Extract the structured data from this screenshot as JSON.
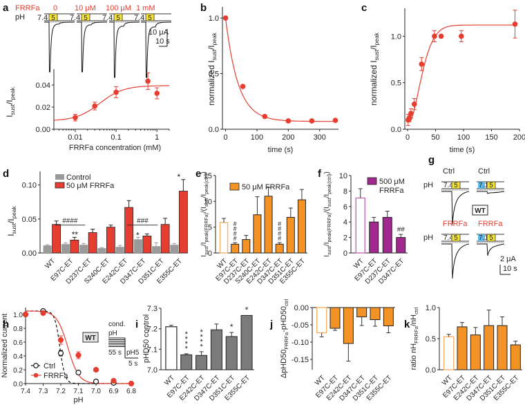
{
  "colors": {
    "red": "#e53d2f",
    "gray": "#9a9a9a",
    "darkgray": "#7a7a7a",
    "orange": "#f39325",
    "orange_light": "#f6b46a",
    "purple": "#a0288e",
    "purple_light": "#c66bb8",
    "yellow": "#f5e437",
    "blue": "#5fb8e6"
  },
  "panel_labels": [
    "a",
    "b",
    "c",
    "d",
    "e",
    "f",
    "g",
    "h",
    "i",
    "j",
    "k"
  ],
  "traces_a": {
    "row_label_top": "FRRFa",
    "row_label_ph": "pH",
    "conditions": [
      "0",
      "10 μM",
      "100 μM",
      "1 mM"
    ],
    "ph_start": "7.4",
    "ph_step": "5",
    "scale_current": "10 μA",
    "scale_time": "10 s"
  },
  "traces_g": {
    "top_labels": [
      "Ctrl",
      "Ctrl"
    ],
    "bottom_labels": [
      "FRRFa",
      "FRRFa"
    ],
    "ph_label": "pH",
    "ph_start": [
      "7.4",
      "7.1"
    ],
    "ph_step": "5",
    "badge": "WT",
    "scale_current": "2 μA",
    "scale_time": "10 s"
  },
  "chart_data": [
    {
      "id": "a",
      "type": "scatter",
      "xscale": "log",
      "xlabel": "FRRFa concentration (mM)",
      "ylabel": "Isust/Ipeak",
      "ylim": [
        0,
        0.05
      ],
      "yticks": [
        "0.00",
        "0.02",
        "0.04"
      ],
      "xticks": [
        "0.01",
        "0.1",
        "1"
      ],
      "x": [
        0.01,
        0.03,
        0.1,
        0.6,
        1.0
      ],
      "y": [
        0.0105,
        0.021,
        0.0335,
        0.0435,
        0.0325
      ],
      "err": [
        0.003,
        0.0035,
        0.005,
        0.0075,
        0.005
      ],
      "fit": {
        "bottom": 0.0075,
        "top": 0.0395,
        "ec50": 0.04,
        "hill": 1.5
      }
    },
    {
      "id": "b",
      "type": "scatter",
      "xlabel": "time (s)",
      "ylabel": "normalized Isust/Ipeak",
      "xlim": [
        -10,
        360
      ],
      "ylim": [
        0,
        1.1
      ],
      "xticks": [
        "0",
        "100",
        "200",
        "300"
      ],
      "yticks": [
        "0.0",
        "0.5",
        "1.0"
      ],
      "x": [
        0,
        55,
        125,
        200,
        275,
        350
      ],
      "y": [
        1.0,
        0.385,
        0.115,
        0.075,
        0.075,
        0.08
      ],
      "fit": {
        "plateau": 0.07,
        "tau": 40
      }
    },
    {
      "id": "c",
      "type": "scatter",
      "xlabel": "time (s)",
      "ylabel": "normalized Isust/Ipeak",
      "xlim": [
        -5,
        200
      ],
      "ylim": [
        0,
        1.3
      ],
      "xticks": [
        "0",
        "50",
        "100",
        "150",
        "200"
      ],
      "yticks": [
        "0.0",
        "0.5",
        "1.0"
      ],
      "x": [
        1,
        3,
        6,
        12,
        25,
        48,
        60,
        96,
        192
      ],
      "y": [
        0.1,
        0.12,
        0.17,
        0.27,
        0.7,
        1.0,
        1.0,
        1.0,
        1.13
      ],
      "err": [
        0.06,
        0.04,
        0.05,
        0.06,
        0.07,
        0.06,
        0.0,
        0.06,
        0.15
      ],
      "fit": {
        "top": 1.12,
        "tau": 28,
        "delay": 4,
        "start": 0.08
      }
    },
    {
      "id": "d",
      "type": "bar",
      "ylabel": "Isust/Ipeak",
      "ylim": [
        0,
        0.12
      ],
      "yticks": [
        "0.00",
        "0.05",
        "0.10"
      ],
      "categories": [
        "WT",
        "E97C-ET",
        "D237C-ET",
        "S240C-ET",
        "E242C-ET",
        "D347C-ET",
        "D351C-ET",
        "E355C-ET"
      ],
      "series": [
        {
          "name": "Control",
          "values": [
            0.011,
            0.013,
            0.012,
            0.007,
            0.009,
            0.02,
            0.01,
            0.012
          ],
          "err": [
            0.001,
            0.002,
            0.002,
            0.001,
            0.002,
            0.003,
            0.005,
            0.002
          ]
        },
        {
          "name": "50 μM FRRFa",
          "values": [
            0.042,
            0.019,
            0.03,
            0.038,
            0.067,
            0.025,
            0.042,
            0.091
          ],
          "err": [
            0.005,
            0.004,
            0.005,
            0.003,
            0.01,
            0.003,
            0.009,
            0.017
          ]
        }
      ],
      "annotations": [
        {
          "text": "####",
          "category": 1,
          "y": 0.041
        },
        {
          "text": "**",
          "category": 1,
          "y": 0.027
        },
        {
          "text": "###",
          "category": 5,
          "y": 0.041
        },
        {
          "text": "*",
          "category": 5,
          "y": 0.026,
          "series": 0
        },
        {
          "text": "*",
          "category": 7,
          "y": 0.112
        }
      ]
    },
    {
      "id": "e",
      "type": "bar",
      "ylabel": "Isust/Ipeak(FRRFa)/(Isust/Ipeak(ctrl))",
      "legend": "50 μM FRRFa",
      "ylim": [
        0,
        15
      ],
      "yticks": [
        "0",
        "5",
        "10",
        "15"
      ],
      "categories": [
        "WT",
        "E97C-ET",
        "D237C-ET",
        "S240C-ET",
        "E242C-ET",
        "D347C-ET",
        "D351C-ET",
        "E355C-ET"
      ],
      "values": [
        5.9,
        1.7,
        2.6,
        7.4,
        11.0,
        1.7,
        6.9,
        10.3
      ],
      "err": [
        0.8,
        0.3,
        0.8,
        3.5,
        1.7,
        0.3,
        1.8,
        2.0
      ],
      "annotations": [
        {
          "text": "####",
          "category": 1
        },
        {
          "text": "####",
          "category": 5
        }
      ]
    },
    {
      "id": "f",
      "type": "bar",
      "ylabel": "Isust/Ipeak(FRRFa)/(Isust/Ipeak(ctrl))",
      "legend": [
        "500 μM",
        "FRRFa"
      ],
      "ylim": [
        0,
        10
      ],
      "yticks": [
        "0",
        "2",
        "4",
        "6",
        "8",
        "10"
      ],
      "categories": [
        "WT",
        "E97C-ET",
        "D237C-ET",
        "D347C-ET"
      ],
      "values": [
        7.1,
        4.0,
        4.6,
        2.0
      ],
      "err": [
        1.2,
        0.6,
        0.8,
        0.4
      ],
      "annotations": [
        {
          "text": "##",
          "category": 3
        }
      ]
    },
    {
      "id": "h",
      "type": "line",
      "xlabel": "pH",
      "ylabel": "Normalized current",
      "xlim": [
        7.4,
        6.8
      ],
      "ylim": [
        0,
        1.05
      ],
      "xticks": [
        "7.4",
        "7.3",
        "7.2",
        "7.1",
        "7.0",
        "6.9",
        "6.8"
      ],
      "yticks": [
        "0.0",
        "0.2",
        "0.4",
        "0.6",
        "0.8",
        "1.0"
      ],
      "series": [
        {
          "name": "Ctrl",
          "x": [
            7.4,
            7.3,
            7.2,
            7.1,
            7.0,
            6.9
          ],
          "y": [
            1.0,
            1.05,
            0.44,
            0.16,
            0.03,
            0.01
          ],
          "err": [
            0,
            0,
            0.04,
            0,
            0,
            0
          ],
          "fit": {
            "phd50": 7.205,
            "n": 30
          }
        },
        {
          "name": "FRRFa",
          "x": [
            7.4,
            7.3,
            7.2,
            7.1,
            7.0,
            6.9,
            6.8
          ],
          "y": [
            1.0,
            1.02,
            0.63,
            0.41,
            0.2,
            0.04,
            0.0
          ],
          "err": [
            0,
            0,
            0.06,
            0.05,
            0,
            0,
            0
          ],
          "fit": {
            "phd50": 7.16,
            "n": 14
          }
        }
      ],
      "badge": "WT",
      "protocol": {
        "label1": "cond.",
        "label2": "pH",
        "duration1": "55 s",
        "step": "pH5",
        "duration2": "5 s"
      }
    },
    {
      "id": "i",
      "type": "bar",
      "ylabel": "pHD50 control",
      "ylim": [
        7.0,
        7.3
      ],
      "yticks": [
        "7.0",
        "7.1",
        "7.2",
        "7.3"
      ],
      "categories": [
        "WT",
        "E97C-ET",
        "E242C-ET",
        "D347C-ET",
        "D351C-ET",
        "E355C-ET"
      ],
      "values": [
        7.21,
        7.073,
        7.07,
        7.195,
        7.162,
        7.265
      ],
      "err": [
        0.007,
        0.005,
        0.018,
        0.028,
        0.02,
        0.0
      ],
      "annotations": [
        {
          "text": "****",
          "category": 1
        },
        {
          "text": "****",
          "category": 2
        },
        {
          "text": "*",
          "category": 4
        },
        {
          "text": "*",
          "category": 5
        }
      ]
    },
    {
      "id": "j",
      "type": "bar",
      "ylabel": "ΔpHD50 FRRFa - pHD50 ctrl",
      "ylim": [
        -0.18,
        0.0
      ],
      "yticks": [
        "0.00",
        "-0.05",
        "-0.10",
        "-0.15"
      ],
      "categories": [
        "WT",
        "E97C-ET",
        "E242C-ET",
        "D347C-ET",
        "D351C-ET",
        "E355C-ET"
      ],
      "values": [
        -0.073,
        -0.06,
        -0.104,
        -0.027,
        -0.035,
        -0.053
      ],
      "err": [
        0.012,
        0.006,
        0.051,
        0.025,
        0.019,
        0.02
      ]
    },
    {
      "id": "k",
      "type": "bar",
      "ylabel": "ratio nH FRRFa / nH ctrl",
      "ylim": [
        0,
        1.0
      ],
      "yticks": [
        "0.0",
        "0.5",
        "1.0"
      ],
      "categories": [
        "WT",
        "E97C-ET",
        "E242C-ET",
        "D347C-ET",
        "D351C-ET",
        "E355C-ET"
      ],
      "values": [
        0.53,
        0.69,
        0.56,
        0.71,
        0.71,
        0.4
      ],
      "err": [
        0.04,
        0.07,
        0.12,
        0.25,
        0.14,
        0.06
      ]
    }
  ]
}
